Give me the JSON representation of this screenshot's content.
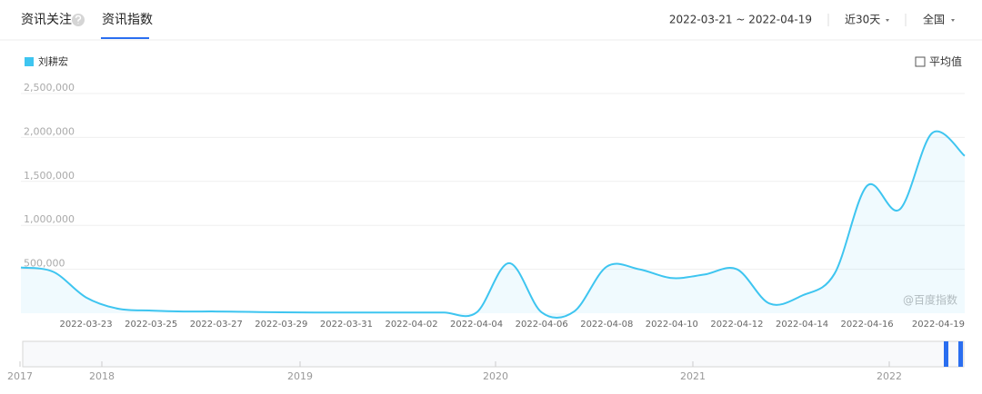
{
  "tabs": [
    "资讯关注",
    "资讯指数"
  ],
  "date_range": "2022-03-21 ~ 2022-04-19",
  "period": "近30天",
  "region": "全国",
  "average_toggle": "平均值",
  "watermark": "@百度指数",
  "chart_data": {
    "type": "line",
    "categories": [
      null,
      null,
      "2022-03-23",
      null,
      "2022-03-25",
      null,
      "2022-03-27",
      null,
      "2022-03-29",
      null,
      "2022-03-31",
      null,
      "2022-04-02",
      null,
      "2022-04-04",
      null,
      "2022-04-06",
      null,
      "2022-04-08",
      null,
      "2022-04-10",
      null,
      "2022-04-12",
      null,
      "2022-04-14",
      null,
      "2022-04-16",
      null,
      null,
      "2022-04-19"
    ],
    "series": [
      {
        "name": "刘耕宏",
        "color": "#3ec5f0",
        "values": [
          520000,
          470000,
          180000,
          50000,
          30000,
          20000,
          20000,
          15000,
          10000,
          8000,
          8000,
          8000,
          8000,
          8000,
          8000,
          570000,
          10000,
          20000,
          530000,
          500000,
          400000,
          440000,
          500000,
          110000,
          200000,
          450000,
          1450000,
          1180000,
          2050000,
          1790000
        ]
      }
    ],
    "ylim": [
      0,
      2500000
    ],
    "yticks": [
      {
        "value": 500000,
        "label": "500,000"
      },
      {
        "value": 1000000,
        "label": "1,000,000"
      },
      {
        "value": 1500000,
        "label": "1,500,000"
      },
      {
        "value": 2000000,
        "label": "2,000,000"
      },
      {
        "value": 2500000,
        "label": "2,500,000"
      }
    ],
    "grid": true
  },
  "navigator": {
    "years": [
      "2017",
      "2018",
      "2019",
      "2020",
      "2021",
      "2022"
    ]
  }
}
